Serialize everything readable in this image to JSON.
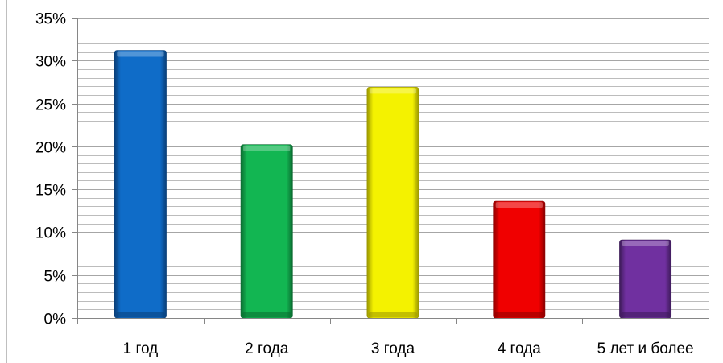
{
  "chart_data": {
    "type": "bar",
    "categories": [
      "1 год",
      "2 года",
      "3 года",
      "4 года",
      "5 лет и более"
    ],
    "values": [
      31.2,
      20.2,
      26.9,
      13.6,
      9.1
    ],
    "value_unit": "%",
    "ylim": [
      0,
      35
    ],
    "yticks": [
      0,
      5,
      10,
      15,
      20,
      25,
      30,
      35
    ],
    "ytick_labels": [
      "0%",
      "5%",
      "10%",
      "15%",
      "20%",
      "25%",
      "30%",
      "35%"
    ],
    "minor_grid_step": 1,
    "grid": true,
    "legend": "none",
    "title": "",
    "xlabel": "",
    "ylabel": "",
    "bar_colors": [
      "#0f6cc8",
      "#12b652",
      "#f4f200",
      "#f00000",
      "#7030a0"
    ],
    "bar_dark_colors": [
      "#0a3f78",
      "#0a6b30",
      "#9a9600",
      "#8a0000",
      "#3c1a57"
    ],
    "grid_color": "#a6a6a6",
    "axis_color": "#868686"
  }
}
